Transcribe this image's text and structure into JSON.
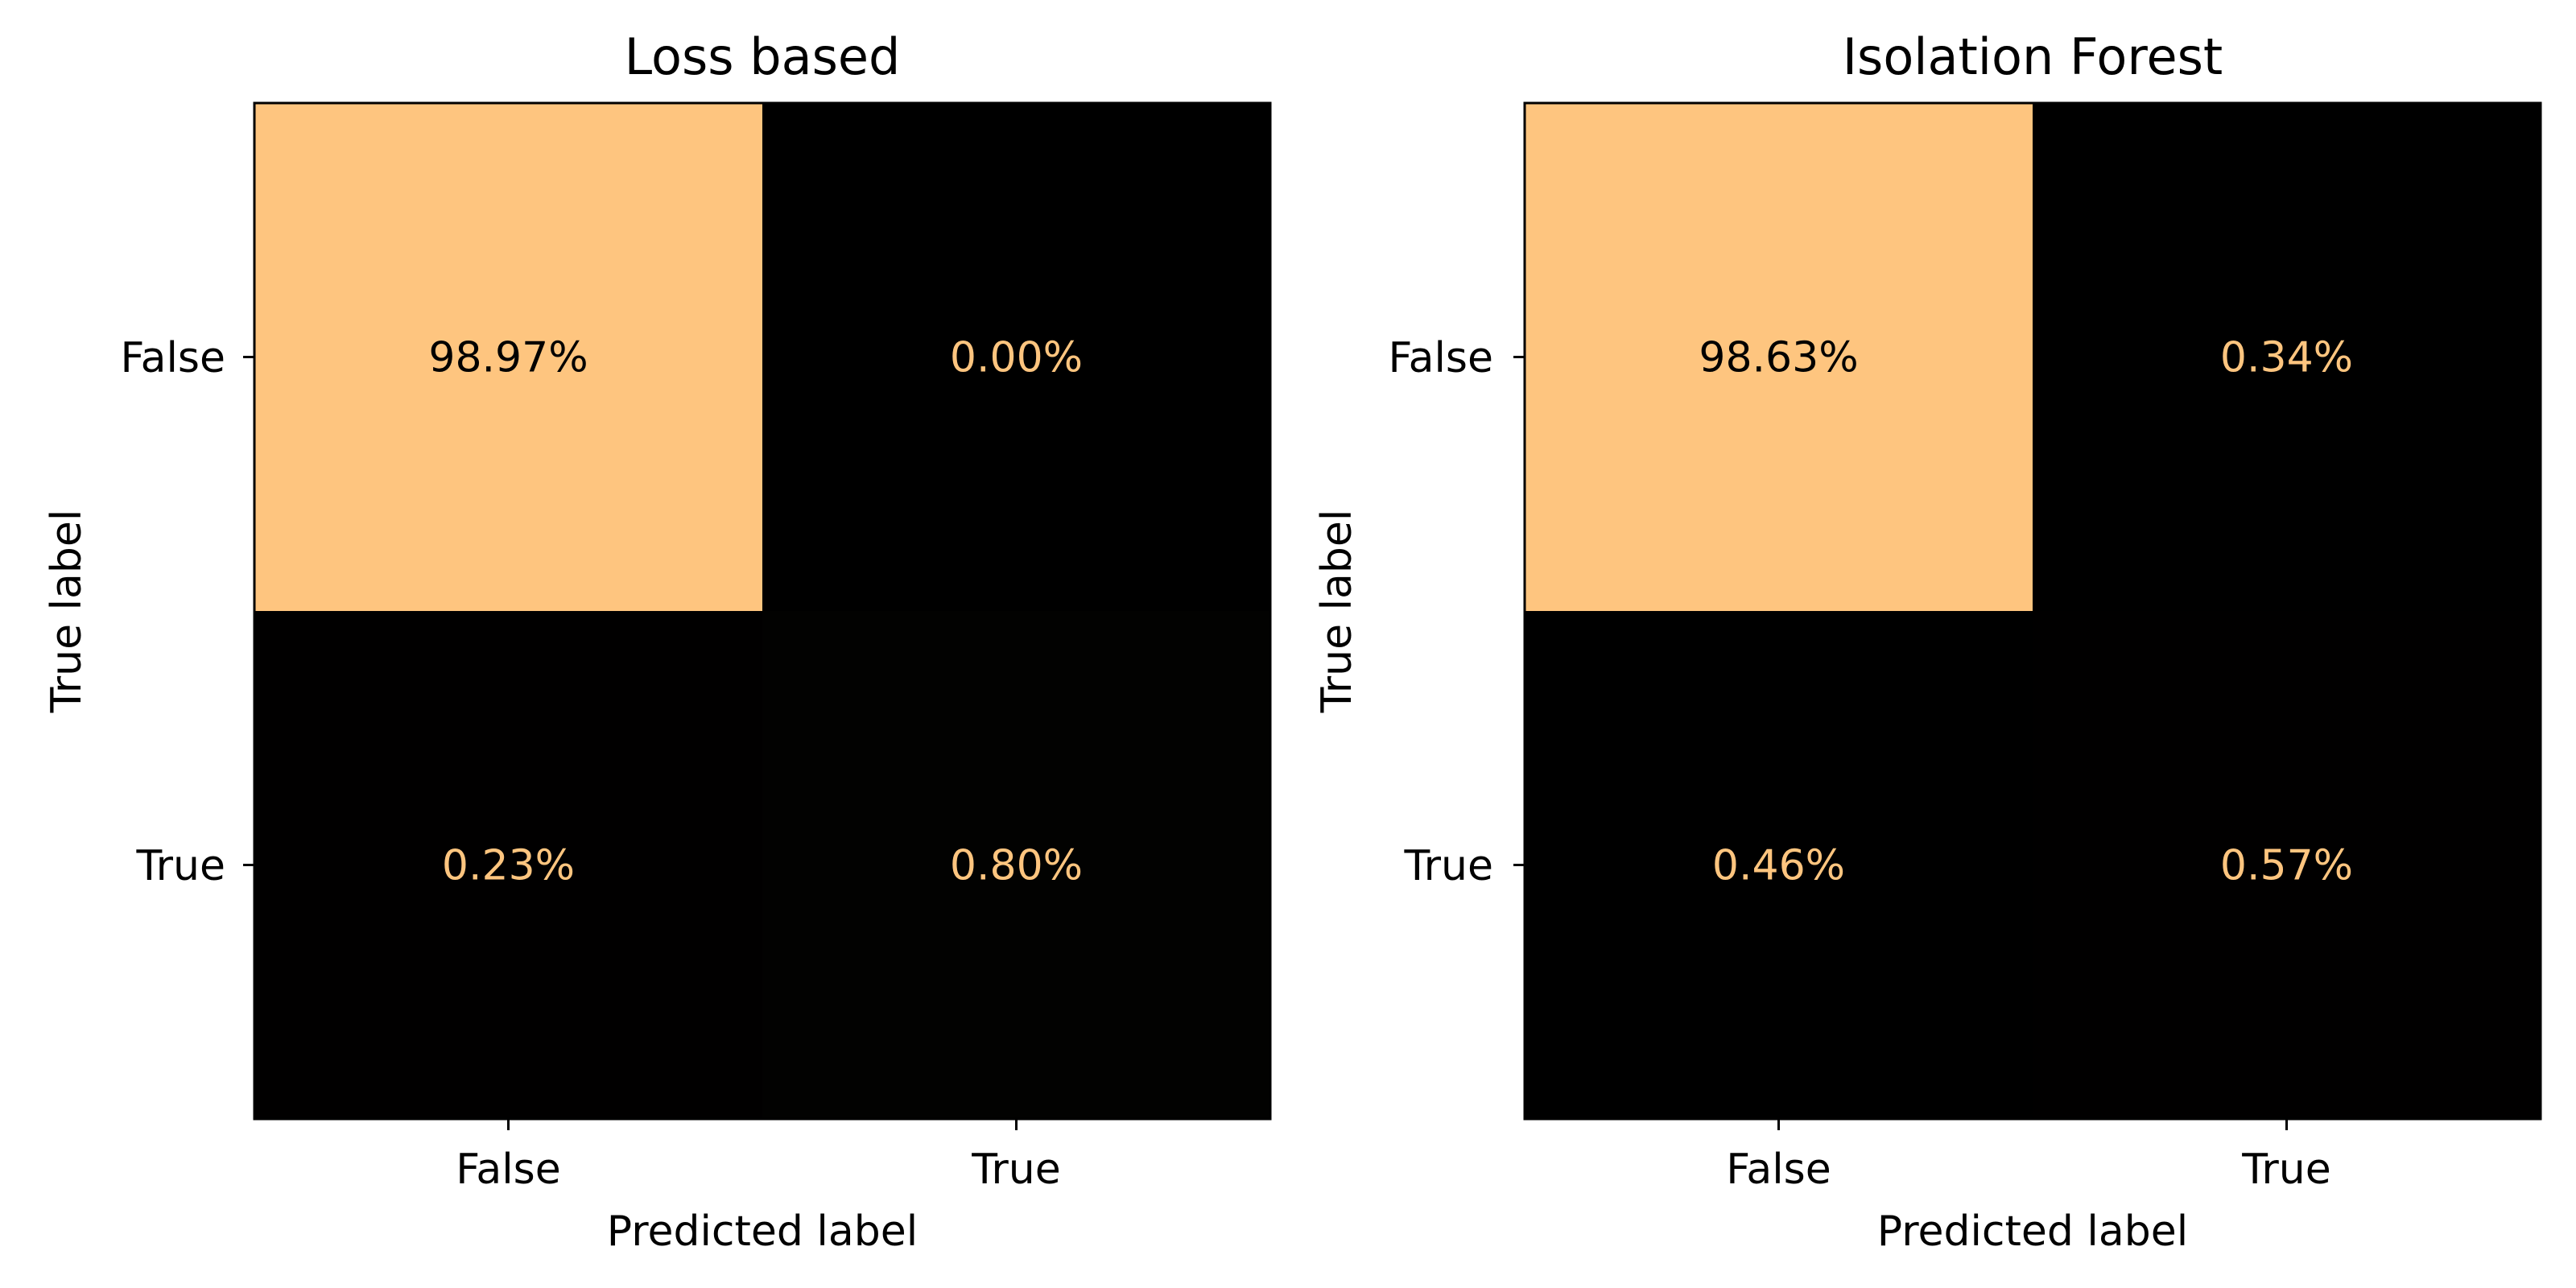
{
  "chart_data": [
    {
      "type": "heatmap",
      "title": "Loss based",
      "xlabel": "Predicted label",
      "ylabel": "True label",
      "x_categories": [
        "False",
        "True"
      ],
      "y_categories": [
        "False",
        "True"
      ],
      "values": [
        [
          98.97,
          0.0
        ],
        [
          0.23,
          0.8
        ]
      ],
      "cell_labels": [
        [
          "98.97%",
          "0.00%"
        ],
        [
          "0.23%",
          "0.80%"
        ]
      ],
      "colors": {
        "high": "#fec57f",
        "low": "#000000",
        "text_on_high": "#000000",
        "text_on_low": "#fec57f"
      },
      "grid": false,
      "legend": "none"
    },
    {
      "type": "heatmap",
      "title": "Isolation Forest",
      "xlabel": "Predicted label",
      "ylabel": "True label",
      "x_categories": [
        "False",
        "True"
      ],
      "y_categories": [
        "False",
        "True"
      ],
      "values": [
        [
          98.63,
          0.34
        ],
        [
          0.46,
          0.57
        ]
      ],
      "cell_labels": [
        [
          "98.63%",
          "0.34%"
        ],
        [
          "0.46%",
          "0.57%"
        ]
      ],
      "colors": {
        "high": "#fec57f",
        "low": "#000000",
        "text_on_high": "#000000",
        "text_on_low": "#fec57f"
      },
      "grid": false,
      "legend": "none"
    }
  ]
}
